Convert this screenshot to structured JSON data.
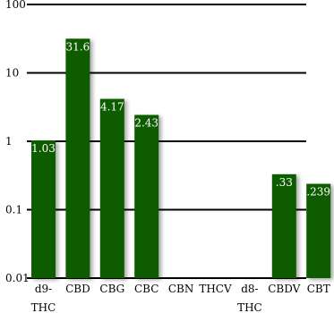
{
  "chart_data": {
    "type": "bar",
    "scale": "log",
    "ylim": [
      0.01,
      100
    ],
    "yticks": [
      "100",
      "10",
      "1",
      "0.1",
      "0.01"
    ],
    "grid": true,
    "bar_color": "#0d5c00",
    "categories": [
      {
        "label": [
          "d9-",
          "THC"
        ],
        "value": 1.03,
        "value_label": "1.03"
      },
      {
        "label": [
          "CBD"
        ],
        "value": 31.6,
        "value_label": "31.6"
      },
      {
        "label": [
          "CBG"
        ],
        "value": 4.17,
        "value_label": "4.17"
      },
      {
        "label": [
          "CBC"
        ],
        "value": 2.43,
        "value_label": "2.43"
      },
      {
        "label": [
          "CBN"
        ],
        "value": null,
        "value_label": ""
      },
      {
        "label": [
          "THCV"
        ],
        "value": null,
        "value_label": ""
      },
      {
        "label": [
          "d8-",
          "THC"
        ],
        "value": null,
        "value_label": ""
      },
      {
        "label": [
          "CBDV"
        ],
        "value": 0.33,
        "value_label": ".33"
      },
      {
        "label": [
          "CBT"
        ],
        "value": 0.239,
        "value_label": ".239"
      }
    ]
  }
}
